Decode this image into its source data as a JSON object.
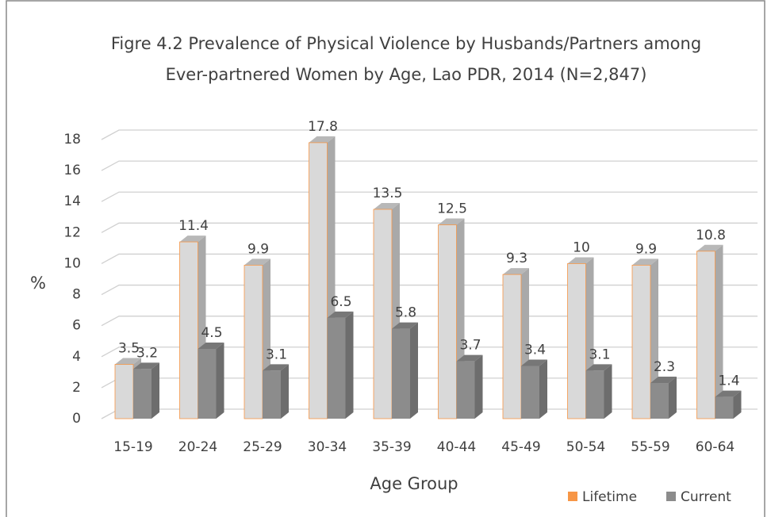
{
  "chart_data": {
    "type": "bar3d",
    "title_lines": [
      "Figre 4.2 Prevalence of Physical Violence by Husbands/Partners among",
      "Ever-partnered Women by Age, Lao PDR, 2014 (N=2,847)"
    ],
    "x_label": "Age Group",
    "y_label": "%",
    "categories": [
      "15-19",
      "20-24",
      "25-29",
      "30-34",
      "35-39",
      "40-44",
      "45-49",
      "50-54",
      "55-59",
      "60-64"
    ],
    "series": [
      {
        "name": "Lifetime",
        "color": "#f79646",
        "bar_color": "#d9d9d9",
        "values": [
          3.5,
          11.4,
          9.9,
          17.8,
          13.5,
          12.5,
          9.3,
          10,
          9.9,
          10.8
        ]
      },
      {
        "name": "Current",
        "color": "#8c8c8c",
        "bar_color": "#8c8c8c",
        "values": [
          3.2,
          4.5,
          3.1,
          6.5,
          5.8,
          3.7,
          3.4,
          3.1,
          2.3,
          1.4
        ]
      }
    ],
    "ylim": [
      0,
      18
    ],
    "yticks": [
      0,
      2,
      4,
      6,
      8,
      10,
      12,
      14,
      16,
      18
    ],
    "grid": true,
    "legend": "bottom-right"
  }
}
